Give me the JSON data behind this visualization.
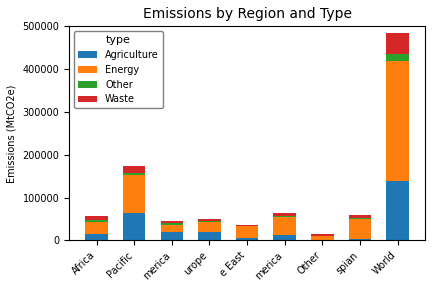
{
  "title": "Emissions by Region and Type",
  "ylabel": "Emissions (MtCO2e)",
  "regions": [
    "Africa",
    "Pacific",
    "merica",
    "urope",
    "e East",
    "merica",
    "Other",
    "spian",
    "World"
  ],
  "types": [
    "Agriculture",
    "Energy",
    "Other",
    "Waste"
  ],
  "colors": [
    "#1f77b4",
    "#ff7f0e",
    "#2ca02c",
    "#d62728"
  ],
  "data": {
    "Agriculture": [
      15000,
      65000,
      20000,
      20000,
      5000,
      12000,
      2000,
      3000,
      140000
    ],
    "Energy": [
      28000,
      88000,
      17000,
      22000,
      28000,
      42000,
      8000,
      47000,
      280000
    ],
    "Other": [
      5000,
      5000,
      3000,
      3000,
      1000,
      3000,
      1000,
      2000,
      15000
    ],
    "Waste": [
      8000,
      17000,
      5000,
      5000,
      3000,
      8000,
      4000,
      8000,
      50000
    ]
  },
  "ylim": [
    0,
    500000
  ],
  "yticks": [
    0,
    100000,
    200000,
    300000,
    400000,
    500000
  ],
  "figsize": [
    4.32,
    2.88
  ],
  "dpi": 100
}
